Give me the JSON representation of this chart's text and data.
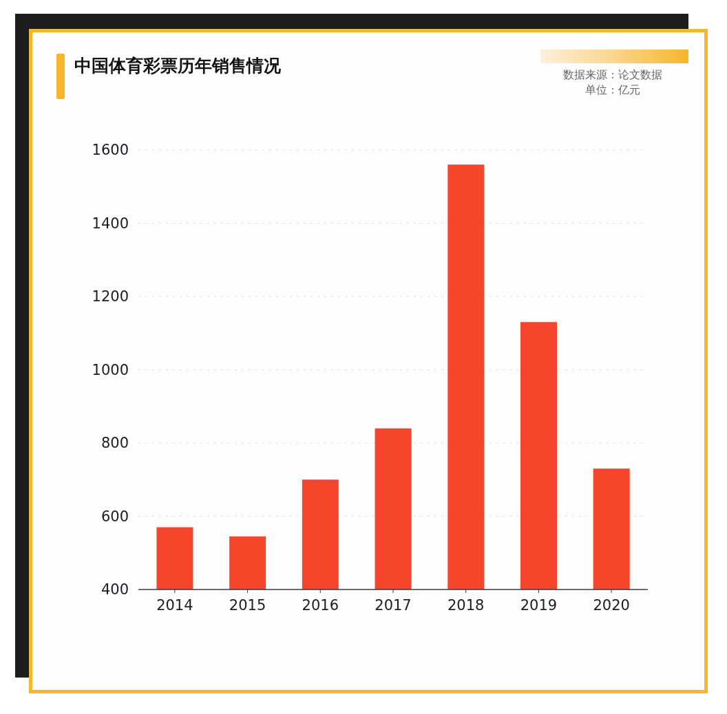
{
  "chart_data": {
    "type": "bar",
    "title": "中国体育彩票历年销售情况",
    "annotations": [
      "数据来源：论文数据",
      "单位：亿元"
    ],
    "categories": [
      "2014",
      "2015",
      "2016",
      "2017",
      "2018",
      "2019",
      "2020"
    ],
    "values": [
      570,
      545,
      700,
      840,
      1560,
      1130,
      730
    ],
    "color": "#f5452b",
    "ylim": [
      400,
      1600
    ],
    "yticks": [
      400,
      600,
      800,
      1000,
      1200,
      1400,
      1600
    ],
    "grid": "y"
  }
}
